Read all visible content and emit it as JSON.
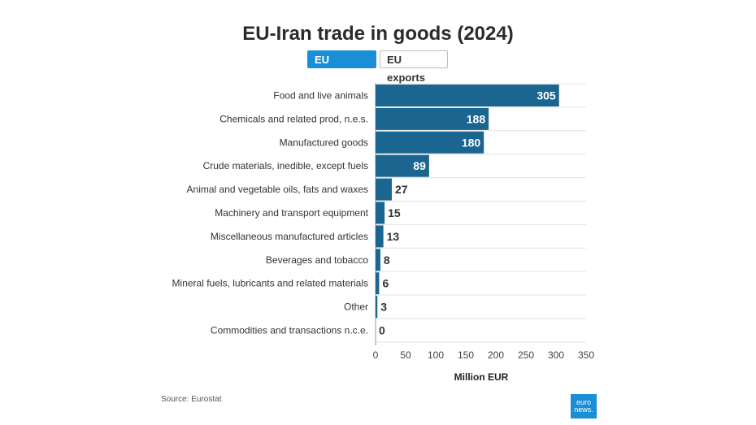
{
  "title": "EU-Iran trade in goods (2024)",
  "tabs": [
    {
      "label": "EU imports",
      "active": true
    },
    {
      "label": "EU exports",
      "active": false
    }
  ],
  "source": "Source: Eurostat",
  "logo": {
    "line1": "euro",
    "line2": "news."
  },
  "colors": {
    "bar": "#1b6690",
    "accent": "#1a8fd6",
    "grid": "#e3e3e3"
  },
  "chart_data": {
    "type": "bar",
    "orientation": "horizontal",
    "categories": [
      "Food and live animals",
      "Chemicals and related prod, n.e.s.",
      "Manufactured goods",
      "Crude materials, inedible, except fuels",
      "Animal and vegetable oils, fats and waxes",
      "Machinery and transport equipment",
      "Miscellaneous manufactured articles",
      "Beverages and tobacco",
      "Mineral fuels, lubricants and related materials",
      "Other",
      "Commodities and transactions n.c.e."
    ],
    "values": [
      305,
      188,
      180,
      89,
      27,
      15,
      13,
      8,
      6,
      3,
      0
    ],
    "xlabel": "Million EUR",
    "xlim": [
      0,
      350
    ],
    "xticks": [
      0,
      50,
      100,
      150,
      200,
      250,
      300,
      350
    ],
    "grid": true
  }
}
